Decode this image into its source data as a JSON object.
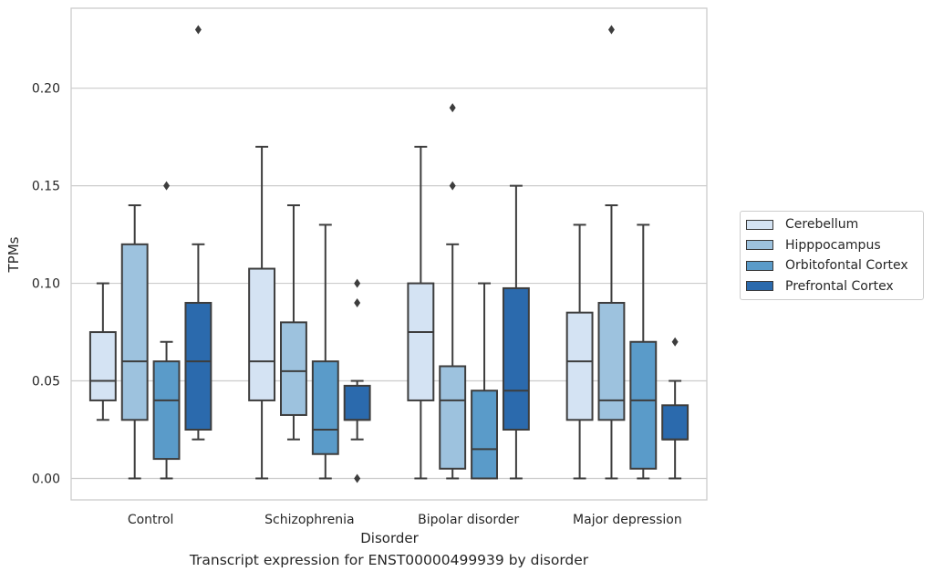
{
  "chart_data": {
    "type": "box",
    "title": "",
    "caption": "Transcript expression for ENST00000499939 by disorder",
    "xlabel": "Disorder",
    "ylabel": "TPMs",
    "ylim": [
      -0.011,
      0.241
    ],
    "yticks": [
      0.0,
      0.05,
      0.1,
      0.15,
      0.2
    ],
    "ytick_labels": [
      "0.00",
      "0.05",
      "0.10",
      "0.15",
      "0.20"
    ],
    "grid": "horizontal",
    "legend_position": "right",
    "categories": [
      "Control",
      "Schizophrenia",
      "Bipolar disorder",
      "Major depression"
    ],
    "series": [
      {
        "name": "Cerebellum",
        "color": "#d4e3f3",
        "boxes": [
          {
            "whislo": 0.03,
            "q1": 0.04,
            "med": 0.05,
            "q3": 0.075,
            "whishi": 0.1,
            "fliers": []
          },
          {
            "whislo": 0.0,
            "q1": 0.04,
            "med": 0.06,
            "q3": 0.1075,
            "whishi": 0.17,
            "fliers": []
          },
          {
            "whislo": 0.0,
            "q1": 0.04,
            "med": 0.075,
            "q3": 0.1,
            "whishi": 0.17,
            "fliers": []
          },
          {
            "whislo": 0.0,
            "q1": 0.03,
            "med": 0.06,
            "q3": 0.085,
            "whishi": 0.13,
            "fliers": []
          }
        ]
      },
      {
        "name": "Hipppocampus",
        "color": "#9dc2de",
        "boxes": [
          {
            "whislo": 0.0,
            "q1": 0.03,
            "med": 0.06,
            "q3": 0.12,
            "whishi": 0.14,
            "fliers": []
          },
          {
            "whislo": 0.02,
            "q1": 0.0325,
            "med": 0.055,
            "q3": 0.08,
            "whishi": 0.14,
            "fliers": []
          },
          {
            "whislo": 0.0,
            "q1": 0.005,
            "med": 0.04,
            "q3": 0.0575,
            "whishi": 0.12,
            "fliers": [
              0.15,
              0.19
            ]
          },
          {
            "whislo": 0.0,
            "q1": 0.03,
            "med": 0.04,
            "q3": 0.09,
            "whishi": 0.14,
            "fliers": [
              0.23
            ]
          }
        ]
      },
      {
        "name": "Orbitofontal Cortex",
        "color": "#5a9bc9",
        "boxes": [
          {
            "whislo": 0.0,
            "q1": 0.01,
            "med": 0.04,
            "q3": 0.06,
            "whishi": 0.07,
            "fliers": [
              0.15
            ]
          },
          {
            "whislo": 0.0,
            "q1": 0.0125,
            "med": 0.025,
            "q3": 0.06,
            "whishi": 0.13,
            "fliers": []
          },
          {
            "whislo": 0.0,
            "q1": 0.0,
            "med": 0.015,
            "q3": 0.045,
            "whishi": 0.1,
            "fliers": []
          },
          {
            "whislo": 0.0,
            "q1": 0.005,
            "med": 0.04,
            "q3": 0.07,
            "whishi": 0.13,
            "fliers": []
          }
        ]
      },
      {
        "name": "Prefrontal Cortex",
        "color": "#2b6aad",
        "boxes": [
          {
            "whislo": 0.02,
            "q1": 0.025,
            "med": 0.06,
            "q3": 0.09,
            "whishi": 0.12,
            "fliers": [
              0.23
            ]
          },
          {
            "whislo": 0.02,
            "q1": 0.03,
            "med": 0.03,
            "q3": 0.0475,
            "whishi": 0.05,
            "fliers": [
              0.0,
              0.09,
              0.1
            ]
          },
          {
            "whislo": 0.0,
            "q1": 0.025,
            "med": 0.045,
            "q3": 0.0975,
            "whishi": 0.15,
            "fliers": []
          },
          {
            "whislo": 0.0,
            "q1": 0.02,
            "med": 0.02,
            "q3": 0.0375,
            "whishi": 0.05,
            "fliers": [
              0.07
            ]
          }
        ]
      }
    ]
  }
}
